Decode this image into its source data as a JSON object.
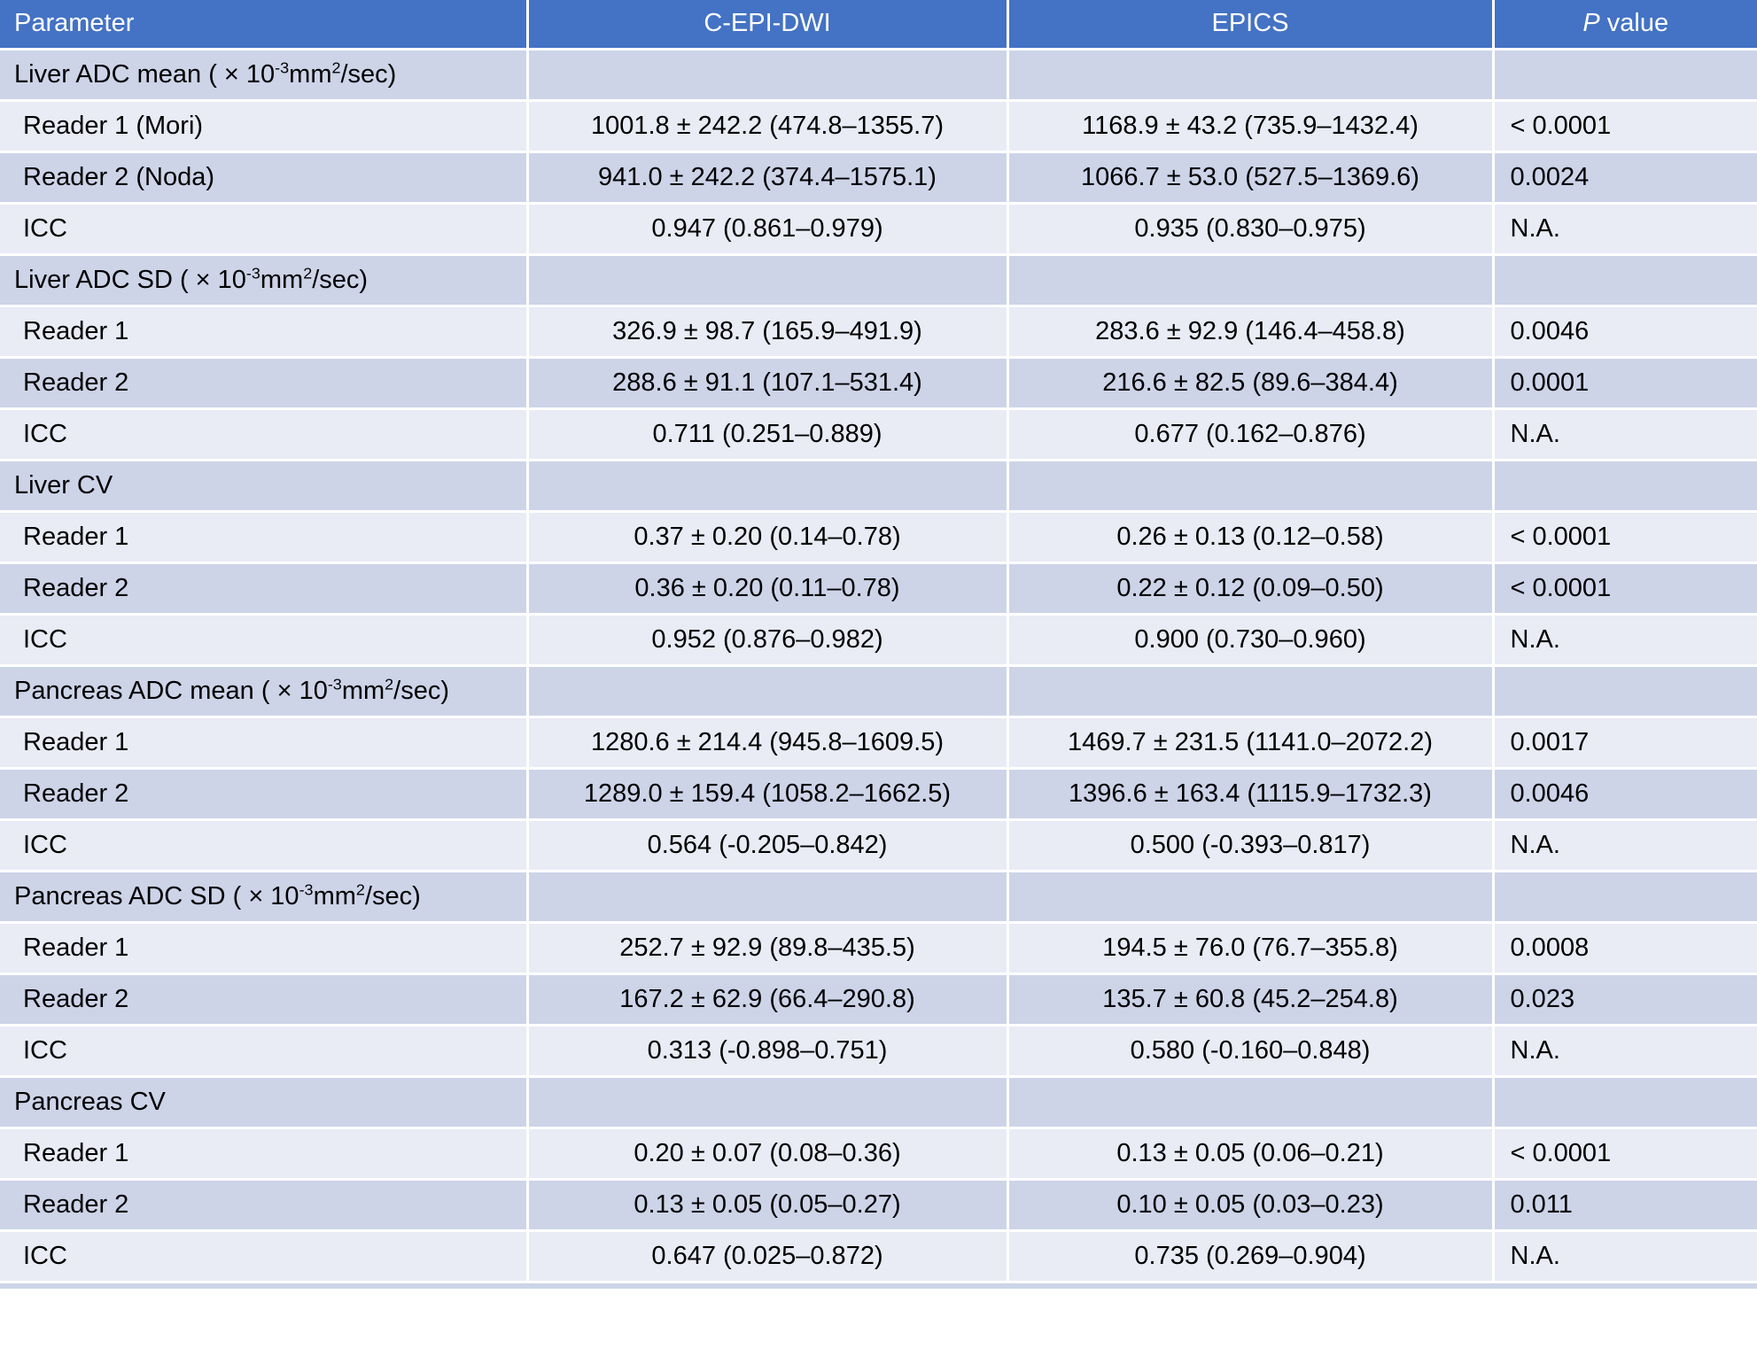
{
  "colors": {
    "header_bg": "#4472C4",
    "band_dark": "#CDD4E8",
    "band_light": "#E9EBF5",
    "header_text": "#FFFFFF",
    "text": "#000000"
  },
  "header": {
    "parameter": "Parameter",
    "cepi": "C-EPI-DWI",
    "epics": "EPICS",
    "p_italic": "P",
    "p_rest": " value"
  },
  "sections": [
    {
      "label": "Liver ADC mean ( × 10^-3^mm^2^/sec)",
      "rows": [
        {
          "label": "Reader 1 (Mori)",
          "cepi": "1001.8 ± 242.2 (474.8–1355.7)",
          "epics": "1168.9 ± 43.2 (735.9–1432.4)",
          "p": "< 0.0001"
        },
        {
          "label": "Reader 2 (Noda)",
          "cepi": "941.0 ± 242.2 (374.4–1575.1)",
          "epics": "1066.7 ± 53.0 (527.5–1369.6)",
          "p": "0.0024"
        },
        {
          "label": "ICC",
          "cepi": "0.947 (0.861–0.979)",
          "epics": "0.935 (0.830–0.975)",
          "p": "N.A."
        }
      ]
    },
    {
      "label": "Liver ADC SD ( × 10^-3^mm^2^/sec)",
      "rows": [
        {
          "label": "Reader 1",
          "cepi": "326.9 ± 98.7 (165.9–491.9)",
          "epics": "283.6 ± 92.9 (146.4–458.8)",
          "p": "0.0046"
        },
        {
          "label": "Reader 2",
          "cepi": "288.6 ± 91.1 (107.1–531.4)",
          "epics": "216.6 ± 82.5 (89.6–384.4)",
          "p": "0.0001"
        },
        {
          "label": "ICC",
          "cepi": "0.711 (0.251–0.889)",
          "epics": "0.677 (0.162–0.876)",
          "p": "N.A."
        }
      ]
    },
    {
      "label": "Liver CV",
      "rows": [
        {
          "label": "Reader 1",
          "cepi": "0.37 ± 0.20 (0.14–0.78)",
          "epics": "0.26 ± 0.13 (0.12–0.58)",
          "p": "< 0.0001"
        },
        {
          "label": "Reader 2",
          "cepi": "0.36 ± 0.20 (0.11–0.78)",
          "epics": "0.22 ± 0.12 (0.09–0.50)",
          "p": "< 0.0001"
        },
        {
          "label": "ICC",
          "cepi": "0.952 (0.876–0.982)",
          "epics": "0.900 (0.730–0.960)",
          "p": "N.A."
        }
      ]
    },
    {
      "label": "Pancreas ADC mean ( × 10^-3^mm^2^/sec)",
      "rows": [
        {
          "label": "Reader 1",
          "cepi": "1280.6 ± 214.4 (945.8–1609.5)",
          "epics": "1469.7 ± 231.5 (1141.0–2072.2)",
          "p": "0.0017"
        },
        {
          "label": "Reader 2",
          "cepi": "1289.0 ± 159.4 (1058.2–1662.5)",
          "epics": "1396.6 ± 163.4 (1115.9–1732.3)",
          "p": "0.0046"
        },
        {
          "label": "ICC",
          "cepi": "0.564 (-0.205–0.842)",
          "epics": "0.500 (-0.393–0.817)",
          "p": "N.A."
        }
      ]
    },
    {
      "label": "Pancreas ADC SD ( × 10^-3^mm^2^/sec)",
      "rows": [
        {
          "label": "Reader 1",
          "cepi": "252.7 ± 92.9 (89.8–435.5)",
          "epics": "194.5 ± 76.0 (76.7–355.8)",
          "p": "0.0008"
        },
        {
          "label": "Reader 2",
          "cepi": "167.2 ± 62.9 (66.4–290.8)",
          "epics": "135.7 ± 60.8 (45.2–254.8)",
          "p": "0.023"
        },
        {
          "label": "ICC",
          "cepi": "0.313 (-0.898–0.751)",
          "epics": "0.580 (-0.160–0.848)",
          "p": "N.A."
        }
      ]
    },
    {
      "label": "Pancreas CV",
      "rows": [
        {
          "label": "Reader 1",
          "cepi": "0.20 ± 0.07 (0.08–0.36)",
          "epics": "0.13 ± 0.05 (0.06–0.21)",
          "p": "< 0.0001"
        },
        {
          "label": "Reader 2",
          "cepi": "0.13 ± 0.05 (0.05–0.27)",
          "epics": "0.10 ± 0.05 (0.03–0.23)",
          "p": "0.011"
        },
        {
          "label": "ICC",
          "cepi": "0.647 (0.025–0.872)",
          "epics": "0.735 (0.269–0.904)",
          "p": "N.A."
        }
      ]
    }
  ]
}
